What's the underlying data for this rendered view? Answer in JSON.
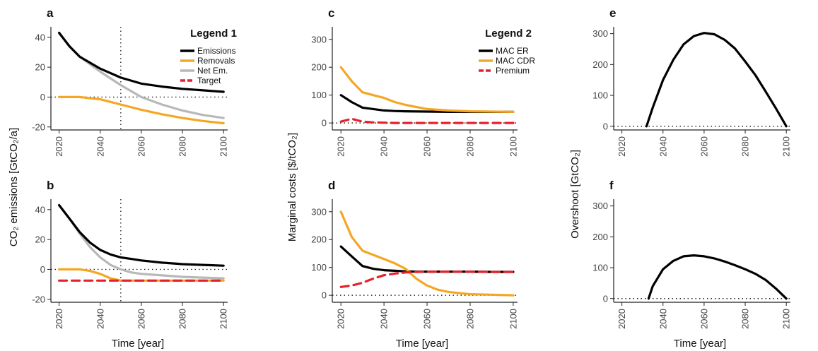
{
  "shared_labels": {
    "xlabel": "Time [year]",
    "ylabel_emissions": "CO₂ emissions [GtCO₂/a]",
    "ylabel_costs": "Marginal costs [$/tCO₂]",
    "ylabel_overshoot": "Overshoot [GtCO₂]"
  },
  "legends": [
    {
      "id": "legend1",
      "title": "Legend 1",
      "entries": [
        {
          "label": "Emissions",
          "color": "#000000",
          "dash": "solid"
        },
        {
          "label": "Removals",
          "color": "#f5a623",
          "dash": "solid"
        },
        {
          "label": "Net Em.",
          "color": "#b8b8b8",
          "dash": "solid"
        },
        {
          "label": "Target",
          "color": "#e8202a",
          "dash": "dashed"
        }
      ]
    },
    {
      "id": "legend2",
      "title": "Legend 2",
      "entries": [
        {
          "label": "MAC ER",
          "color": "#000000",
          "dash": "solid"
        },
        {
          "label": "MAC CDR",
          "color": "#f5a623",
          "dash": "solid"
        },
        {
          "label": "Premium",
          "color": "#e8202a",
          "dash": "dashed"
        }
      ]
    }
  ],
  "chart_data": [
    {
      "panel": "a",
      "type": "line",
      "xlabel": "",
      "ylabel": "",
      "xlim": [
        2016,
        2102
      ],
      "ylim": [
        -22,
        47
      ],
      "xticks": [
        2020,
        2040,
        2060,
        2080,
        2100
      ],
      "yticks": [
        -20,
        0,
        20,
        40
      ],
      "hline_dotted": 0,
      "vline_dotted": 2050,
      "x": [
        2020,
        2025,
        2030,
        2040,
        2050,
        2060,
        2070,
        2080,
        2090,
        2100
      ],
      "series": [
        {
          "name": "Net Em.",
          "color": "#b8b8b8",
          "dash": "solid",
          "values": [
            43,
            34,
            27,
            17,
            8,
            0,
            -5,
            -9,
            -12,
            -14
          ]
        },
        {
          "name": "Emissions",
          "color": "#000000",
          "dash": "solid",
          "values": [
            43,
            34,
            27,
            19,
            13,
            9,
            7,
            5.5,
            4.5,
            3.5
          ]
        },
        {
          "name": "Removals",
          "color": "#f5a623",
          "dash": "solid",
          "values": [
            0,
            0,
            0,
            -1.5,
            -5,
            -8.5,
            -11.5,
            -14,
            -16,
            -17.5
          ]
        }
      ]
    },
    {
      "panel": "b",
      "type": "line",
      "xlabel": "",
      "ylabel": "",
      "xlim": [
        2016,
        2102
      ],
      "ylim": [
        -22,
        47
      ],
      "xticks": [
        2020,
        2040,
        2060,
        2080,
        2100
      ],
      "yticks": [
        -20,
        0,
        20,
        40
      ],
      "hline_dotted": 0,
      "vline_dotted": 2050,
      "x": [
        2020,
        2025,
        2030,
        2035,
        2040,
        2045,
        2050,
        2055,
        2060,
        2070,
        2080,
        2090,
        2100
      ],
      "series": [
        {
          "name": "Net Em.",
          "color": "#b8b8b8",
          "dash": "solid",
          "values": [
            43,
            34,
            24,
            15,
            8,
            3,
            0,
            -2,
            -3,
            -4,
            -5,
            -5.5,
            -6
          ]
        },
        {
          "name": "Emissions",
          "color": "#000000",
          "dash": "solid",
          "values": [
            43,
            34,
            25,
            18,
            13,
            10,
            8,
            7,
            6,
            4.5,
            3.5,
            3,
            2.5
          ]
        },
        {
          "name": "Removals",
          "color": "#f5a623",
          "dash": "solid",
          "values": [
            0,
            0,
            0,
            -1,
            -3,
            -6,
            -7.5,
            -7.5,
            -7.5,
            -7.5,
            -7.5,
            -7.5,
            -7.5
          ]
        },
        {
          "name": "Target",
          "color": "#e8202a",
          "dash": "dashed",
          "values": [
            -7.5,
            -7.5,
            -7.5,
            -7.5,
            -7.5,
            -7.5,
            -7.5,
            -7.5,
            -7.5,
            -7.5,
            -7.5,
            -7.5,
            -7.5
          ]
        }
      ]
    },
    {
      "panel": "c",
      "type": "line",
      "xlabel": "",
      "ylabel": "",
      "xlim": [
        2016,
        2102
      ],
      "ylim": [
        -25,
        345
      ],
      "xticks": [
        2020,
        2040,
        2060,
        2080,
        2100
      ],
      "yticks": [
        0,
        100,
        200,
        300
      ],
      "hline_dotted": 0,
      "x": [
        2020,
        2025,
        2030,
        2035,
        2040,
        2045,
        2050,
        2060,
        2070,
        2080,
        2090,
        2100
      ],
      "series": [
        {
          "name": "MAC ER",
          "color": "#000000",
          "dash": "solid",
          "values": [
            100,
            75,
            55,
            50,
            45,
            43,
            42,
            41,
            40,
            40,
            40,
            40
          ]
        },
        {
          "name": "MAC CDR",
          "color": "#f5a623",
          "dash": "solid",
          "values": [
            200,
            150,
            110,
            100,
            90,
            75,
            65,
            50,
            45,
            42,
            41,
            40
          ]
        },
        {
          "name": "Premium",
          "color": "#e8202a",
          "dash": "dashed",
          "values": [
            5,
            15,
            5,
            2,
            1,
            0,
            0,
            0,
            0,
            0,
            0,
            0
          ]
        }
      ]
    },
    {
      "panel": "d",
      "type": "line",
      "xlabel": "",
      "ylabel": "",
      "xlim": [
        2016,
        2102
      ],
      "ylim": [
        -25,
        345
      ],
      "xticks": [
        2020,
        2040,
        2060,
        2080,
        2100
      ],
      "yticks": [
        0,
        100,
        200,
        300
      ],
      "hline_dotted": 0,
      "x": [
        2020,
        2025,
        2030,
        2035,
        2040,
        2045,
        2050,
        2055,
        2060,
        2065,
        2070,
        2080,
        2090,
        2100
      ],
      "series": [
        {
          "name": "MAC ER",
          "color": "#000000",
          "dash": "solid",
          "values": [
            175,
            140,
            105,
            95,
            90,
            88,
            86,
            85,
            85,
            85,
            85,
            85,
            84,
            84
          ]
        },
        {
          "name": "MAC CDR",
          "color": "#f5a623",
          "dash": "solid",
          "values": [
            300,
            210,
            160,
            145,
            130,
            115,
            95,
            60,
            35,
            20,
            12,
            4,
            2,
            0
          ]
        },
        {
          "name": "Premium",
          "color": "#e8202a",
          "dash": "dashed",
          "values": [
            30,
            35,
            45,
            60,
            72,
            78,
            82,
            84,
            85,
            85,
            85,
            85,
            84,
            84
          ]
        }
      ]
    },
    {
      "panel": "e",
      "type": "line",
      "xlabel": "",
      "ylabel": "",
      "xlim": [
        2016,
        2102
      ],
      "ylim": [
        -12,
        322
      ],
      "xticks": [
        2020,
        2040,
        2060,
        2080,
        2100
      ],
      "yticks": [
        0,
        100,
        200,
        300
      ],
      "hline_dotted": 0,
      "x": [
        2032,
        2035,
        2040,
        2045,
        2050,
        2055,
        2060,
        2065,
        2070,
        2075,
        2080,
        2085,
        2090,
        2095,
        2100
      ],
      "series": [
        {
          "name": "",
          "color": "#000000",
          "dash": "solid",
          "values": [
            0,
            60,
            150,
            215,
            265,
            292,
            302,
            298,
            280,
            252,
            210,
            165,
            112,
            57,
            0
          ]
        }
      ]
    },
    {
      "panel": "f",
      "type": "line",
      "xlabel": "",
      "ylabel": "",
      "xlim": [
        2016,
        2102
      ],
      "ylim": [
        -12,
        322
      ],
      "xticks": [
        2020,
        2040,
        2060,
        2080,
        2100
      ],
      "yticks": [
        0,
        100,
        200,
        300
      ],
      "hline_dotted": 0,
      "x": [
        2033,
        2035,
        2040,
        2045,
        2050,
        2055,
        2060,
        2065,
        2070,
        2075,
        2080,
        2085,
        2090,
        2095,
        2100
      ],
      "series": [
        {
          "name": "",
          "color": "#000000",
          "dash": "solid",
          "values": [
            0,
            40,
            95,
            122,
            137,
            140,
            137,
            130,
            120,
            108,
            95,
            80,
            60,
            32,
            0
          ]
        }
      ]
    }
  ]
}
